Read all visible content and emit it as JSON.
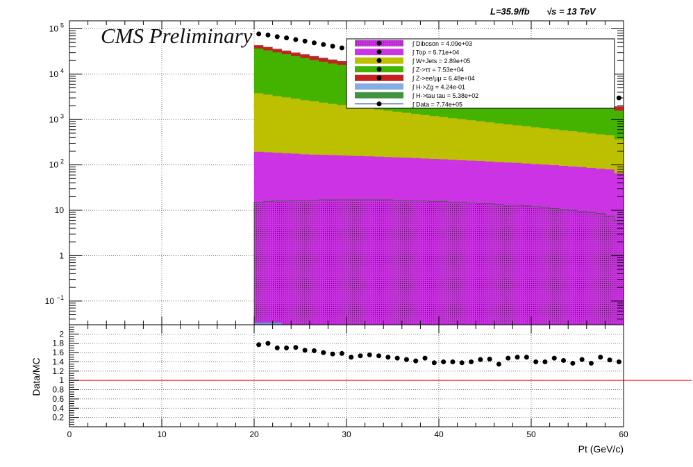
{
  "header": {
    "lumi": "L=35.9/fb",
    "energy": "√s = 13 TeV",
    "cms_label": "CMS Preliminary"
  },
  "chart_data": [
    {
      "type": "area",
      "yscale": "log",
      "xlim": [
        0,
        60
      ],
      "ylim": [
        0.03,
        150000
      ],
      "grid": true,
      "legend_position": "top-right",
      "y_ticks": [
        {
          "v": 0.1,
          "label": "10",
          "sup": "−1"
        },
        {
          "v": 1,
          "label": "1",
          "sup": ""
        },
        {
          "v": 10,
          "label": "10",
          "sup": ""
        },
        {
          "v": 100,
          "label": "10",
          "sup": "2"
        },
        {
          "v": 1000,
          "label": "10",
          "sup": "3"
        },
        {
          "v": 10000,
          "label": "10",
          "sup": "4"
        },
        {
          "v": 100000,
          "label": "10",
          "sup": "5"
        }
      ],
      "x": [
        20.5,
        21.5,
        22.5,
        23.5,
        24.5,
        25.5,
        26.5,
        27.5,
        28.5,
        29.5,
        30.5,
        31.5,
        32.5,
        33.5,
        34.5,
        35.5,
        36.5,
        37.5,
        38.5,
        39.5,
        40.5,
        41.5,
        42.5,
        43.5,
        44.5,
        45.5,
        46.5,
        47.5,
        48.5,
        49.5,
        50.5,
        51.5,
        52.5,
        53.5,
        54.5,
        55.5,
        56.5,
        57.5,
        58.5,
        59.5
      ],
      "series": [
        {
          "name": "Diboson",
          "legend": "∫ Diboson = 4.09e+03",
          "color": "#993399",
          "pattern": "dots",
          "values": [
            15,
            15.5,
            16,
            16,
            16.5,
            16.5,
            16.5,
            17,
            17,
            17,
            17,
            17,
            17,
            17,
            17,
            16.5,
            16.5,
            16,
            16,
            15.5,
            15.5,
            15,
            15,
            14.5,
            14,
            14,
            13.5,
            13,
            13,
            12.5,
            12,
            11.5,
            11,
            10.5,
            10,
            9.5,
            9,
            8.5,
            7.5,
            6
          ]
        },
        {
          "name": "Top",
          "legend": "∫ Top = 5.71e+04",
          "color": "#cc33e5",
          "values": [
            180,
            175,
            170,
            165,
            160,
            155,
            152,
            150,
            148,
            145,
            142,
            140,
            138,
            135,
            132,
            130,
            128,
            125,
            122,
            120,
            118,
            115,
            112,
            110,
            108,
            105,
            102,
            100,
            98,
            95,
            92,
            90,
            88,
            85,
            82,
            80,
            77,
            74,
            72,
            60
          ]
        },
        {
          "name": "W+Jets",
          "legend": "∫ W+Jets = 2.89e+05",
          "color": "#bdc000",
          "values": [
            3600,
            3350,
            3100,
            2900,
            2700,
            2500,
            2350,
            2200,
            2050,
            1930,
            1810,
            1700,
            1600,
            1510,
            1420,
            1340,
            1260,
            1190,
            1120,
            1060,
            1000,
            945,
            890,
            840,
            795,
            750,
            710,
            670,
            635,
            600,
            570,
            540,
            510,
            485,
            460,
            435,
            410,
            390,
            370,
            300
          ]
        },
        {
          "name": "Z->ττ",
          "legend": "∫ Z->ττ = 7.53e+04",
          "color": "#44b300",
          "values": [
            33000,
            30000,
            27000,
            24500,
            22000,
            20000,
            18000,
            16500,
            15000,
            13800,
            12600,
            11500,
            10600,
            9800,
            9000,
            8300,
            7700,
            7100,
            6500,
            6000,
            5600,
            5200,
            4800,
            4400,
            4100,
            3800,
            3500,
            3250,
            3000,
            2800,
            2600,
            2400,
            2250,
            2100,
            1950,
            1800,
            1650,
            1550,
            1450,
            1200
          ]
        },
        {
          "name": "Z->ee/μμ",
          "legend": "∫ Z->ee/μμ = 6.48e+04",
          "color": "#c91f1f",
          "values": [
            4000,
            3800,
            3500,
            3300,
            3100,
            2900,
            2700,
            2500,
            2300,
            2150,
            2000,
            1850,
            1750,
            1600,
            1500,
            1400,
            1300,
            1200,
            1120,
            1050,
            980,
            920,
            860,
            800,
            750,
            700,
            650,
            610,
            570,
            530,
            500,
            470,
            440,
            410,
            380,
            360,
            340,
            320,
            300,
            250
          ]
        },
        {
          "name": "Z->ee/μμ (2)",
          "legend": "",
          "color": "#aa3333",
          "values": [
            2800,
            2600,
            2400,
            2200,
            2050,
            1900,
            1750,
            1620,
            1500,
            1400,
            1300,
            1200,
            1110,
            1030,
            960,
            890,
            820,
            760,
            700,
            650,
            600,
            560,
            520,
            480,
            450,
            420,
            390,
            360,
            340,
            310,
            290,
            270,
            250,
            235,
            220,
            205,
            190,
            180,
            165,
            140
          ]
        }
      ],
      "overlays": [
        {
          "name": "H->Zg",
          "legend": "∫ H->Zg = 4.24e-01",
          "color": "#6699dd"
        },
        {
          "name": "H->tau tau",
          "legend": "∫ H->tau tau = 5.38e+02",
          "color": "#117711"
        }
      ],
      "data": {
        "name": "Data",
        "legend": "∫ Data = 7.74e+05",
        "color": "#000000",
        "values": [
          77000,
          73000,
          67000,
          63000,
          58000,
          53500,
          49000,
          45000,
          41500,
          38000,
          35000,
          32000,
          29500,
          27200,
          25000,
          23000,
          21200,
          19600,
          18000,
          16600,
          15300,
          14100,
          13000,
          12000,
          11100,
          10200,
          9400,
          8700,
          8000,
          7400,
          6800,
          6300,
          5800,
          5350,
          4900,
          4500,
          4200,
          3850,
          3550,
          3000
        ]
      },
      "annotation": "CMS Preliminary"
    },
    {
      "type": "scatter",
      "xlabel": "Pt (GeV/c)",
      "ylabel": "Data/MC",
      "xlim": [
        0,
        60
      ],
      "ylim": [
        0,
        2.2
      ],
      "grid": true,
      "reference_line": {
        "y": 1,
        "color": "#ff0000"
      },
      "x_ticks": [
        0,
        10,
        20,
        30,
        40,
        50,
        60
      ],
      "y_ticks": [
        0.2,
        0.4,
        0.6,
        0.8,
        1,
        1.2,
        1.4,
        1.6,
        1.8,
        2
      ],
      "y_tick_labels": [
        "0.2",
        "0.4",
        "0.6",
        "0.8",
        "1",
        "1.2",
        "1.4",
        "1.6",
        "1.8",
        "2"
      ],
      "x": [
        20.5,
        21.5,
        22.5,
        23.5,
        24.5,
        25.5,
        26.5,
        27.5,
        28.5,
        29.5,
        30.5,
        31.5,
        32.5,
        33.5,
        34.5,
        35.5,
        36.5,
        37.5,
        38.5,
        39.5,
        40.5,
        41.5,
        42.5,
        43.5,
        44.5,
        45.5,
        46.5,
        47.5,
        48.5,
        49.5,
        50.5,
        51.5,
        52.5,
        53.5,
        54.5,
        55.5,
        56.5,
        57.5,
        58.5,
        59.5
      ],
      "values": [
        1.77,
        1.8,
        1.7,
        1.7,
        1.71,
        1.65,
        1.64,
        1.6,
        1.57,
        1.58,
        1.5,
        1.53,
        1.55,
        1.53,
        1.5,
        1.48,
        1.45,
        1.42,
        1.48,
        1.38,
        1.4,
        1.4,
        1.38,
        1.4,
        1.45,
        1.46,
        1.35,
        1.48,
        1.5,
        1.5,
        1.4,
        1.4,
        1.48,
        1.43,
        1.37,
        1.45,
        1.37,
        1.5,
        1.44,
        1.4
      ]
    }
  ]
}
